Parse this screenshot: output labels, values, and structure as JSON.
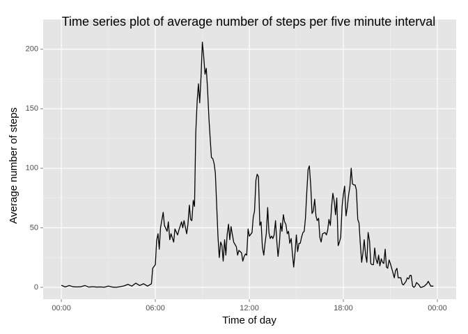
{
  "chart_data": {
    "type": "line",
    "title": "Time series plot of average number of steps per five minute interval",
    "x_label": "Time of day",
    "y_label": "Average number of steps",
    "x": [
      0,
      0.25,
      0.5,
      0.75,
      1,
      1.25,
      1.5,
      1.75,
      2,
      2.25,
      2.5,
      2.75,
      3,
      3.25,
      3.5,
      3.75,
      4,
      4.25,
      4.5,
      4.75,
      5,
      5.25,
      5.5,
      5.75,
      5.83,
      6,
      6.08,
      6.17,
      6.25,
      6.33,
      6.5,
      6.58,
      6.75,
      6.83,
      6.92,
      7,
      7.17,
      7.25,
      7.42,
      7.5,
      7.67,
      7.75,
      7.83,
      8,
      8.08,
      8.17,
      8.25,
      8.33,
      8.42,
      8.5,
      8.58,
      8.67,
      8.75,
      8.83,
      8.92,
      9,
      9.08,
      9.17,
      9.25,
      9.33,
      9.42,
      9.5,
      9.58,
      9.67,
      9.75,
      9.83,
      9.92,
      10,
      10.08,
      10.17,
      10.25,
      10.33,
      10.42,
      10.5,
      10.58,
      10.67,
      10.75,
      10.83,
      10.92,
      11,
      11.17,
      11.25,
      11.33,
      11.5,
      11.58,
      11.67,
      11.75,
      11.83,
      11.92,
      12,
      12.17,
      12.25,
      12.33,
      12.42,
      12.5,
      12.58,
      12.67,
      12.75,
      12.83,
      12.92,
      13,
      13.08,
      13.17,
      13.25,
      13.33,
      13.42,
      13.5,
      13.58,
      13.67,
      13.75,
      13.83,
      13.92,
      14,
      14.08,
      14.17,
      14.25,
      14.33,
      14.42,
      14.5,
      14.58,
      14.67,
      14.75,
      14.83,
      14.92,
      15,
      15.08,
      15.17,
      15.25,
      15.33,
      15.42,
      15.5,
      15.58,
      15.67,
      15.75,
      15.83,
      15.92,
      16,
      16.08,
      16.17,
      16.25,
      16.33,
      16.42,
      16.5,
      16.58,
      16.67,
      16.83,
      16.92,
      17,
      17.08,
      17.17,
      17.25,
      17.33,
      17.42,
      17.5,
      17.58,
      17.67,
      17.75,
      17.83,
      17.92,
      18,
      18.08,
      18.17,
      18.25,
      18.33,
      18.42,
      18.5,
      18.58,
      18.67,
      18.75,
      18.83,
      18.92,
      19,
      19.08,
      19.17,
      19.25,
      19.33,
      19.42,
      19.5,
      19.58,
      19.67,
      19.75,
      19.83,
      19.92,
      20,
      20.08,
      20.17,
      20.25,
      20.33,
      20.42,
      20.5,
      20.58,
      20.67,
      20.75,
      20.83,
      20.92,
      21,
      21.17,
      21.25,
      21.33,
      21.42,
      21.5,
      21.67,
      21.75,
      21.83,
      22,
      22.08,
      22.17,
      22.25,
      22.33,
      22.42,
      22.5,
      22.58,
      22.67,
      22.75,
      22.83,
      22.92,
      23,
      23.17,
      23.25,
      23.33,
      23.42,
      23.5,
      23.58,
      23.75
    ],
    "series": [
      {
        "color": "#000000",
        "values": [
          1.7,
          0.3,
          1.5,
          0.5,
          0.3,
          0.5,
          1.5,
          0.2,
          0.5,
          0.2,
          0.3,
          0.1,
          1,
          0.2,
          0,
          0.5,
          1.2,
          2.5,
          1,
          3.5,
          1.5,
          3,
          1,
          3,
          16,
          19,
          39,
          45,
          32,
          50,
          63,
          52,
          47,
          55,
          40,
          45,
          38,
          49,
          44,
          48,
          55,
          50,
          56,
          45,
          53,
          69,
          57,
          56,
          73,
          68,
          130,
          157,
          171,
          155,
          178,
          206,
          195,
          179,
          184,
          167,
          142,
          125,
          109,
          108,
          104,
          96,
          67,
          42,
          25,
          38,
          35,
          22,
          40,
          27,
          44,
          53,
          40,
          51,
          44,
          38,
          34,
          27,
          31,
          29,
          22,
          26,
          28,
          27,
          49,
          43,
          46,
          59,
          64,
          90,
          95,
          93,
          52,
          55,
          34,
          27,
          37,
          45,
          67,
          46,
          41,
          43,
          41,
          44,
          56,
          39,
          26,
          37,
          54,
          47,
          61,
          55,
          53,
          45,
          47,
          37,
          41,
          28,
          17,
          30,
          44,
          30,
          37,
          37,
          42,
          46,
          47,
          58,
          81,
          99,
          102,
          85,
          62,
          64,
          74,
          60,
          56,
          58,
          42,
          38,
          45,
          46,
          44,
          48,
          57,
          52,
          68,
          79,
          72,
          61,
          75,
          35,
          38,
          42,
          68,
          78,
          85,
          60,
          67,
          77,
          85,
          100,
          87,
          86,
          86,
          82,
          57,
          54,
          37,
          21,
          29,
          40,
          27,
          21,
          46,
          39,
          20,
          19,
          19,
          33,
          24,
          20,
          27,
          18,
          24,
          21,
          20,
          32,
          17,
          16,
          23,
          20,
          12,
          8,
          14,
          16,
          8,
          8,
          3,
          2,
          5,
          8,
          7,
          10,
          10,
          1,
          0,
          1,
          4,
          3,
          2,
          0,
          0,
          1,
          2,
          3,
          5,
          3,
          1,
          1
        ]
      }
    ],
    "xlim": [
      -1.16,
      25.2
    ],
    "xticks": [
      {
        "value": 0,
        "label": "00:00"
      },
      {
        "value": 6,
        "label": "06:00"
      },
      {
        "value": 12,
        "label": "12:00"
      },
      {
        "value": 18,
        "label": "18:00"
      },
      {
        "value": 24,
        "label": "00:00"
      }
    ],
    "minor_xticks": [
      3,
      9,
      15,
      21
    ],
    "ylim": [
      -10,
      225
    ],
    "yticks": [
      0,
      50,
      100,
      150,
      200
    ],
    "minor_yticks": [
      25,
      75,
      125,
      175
    ],
    "grid": true
  }
}
